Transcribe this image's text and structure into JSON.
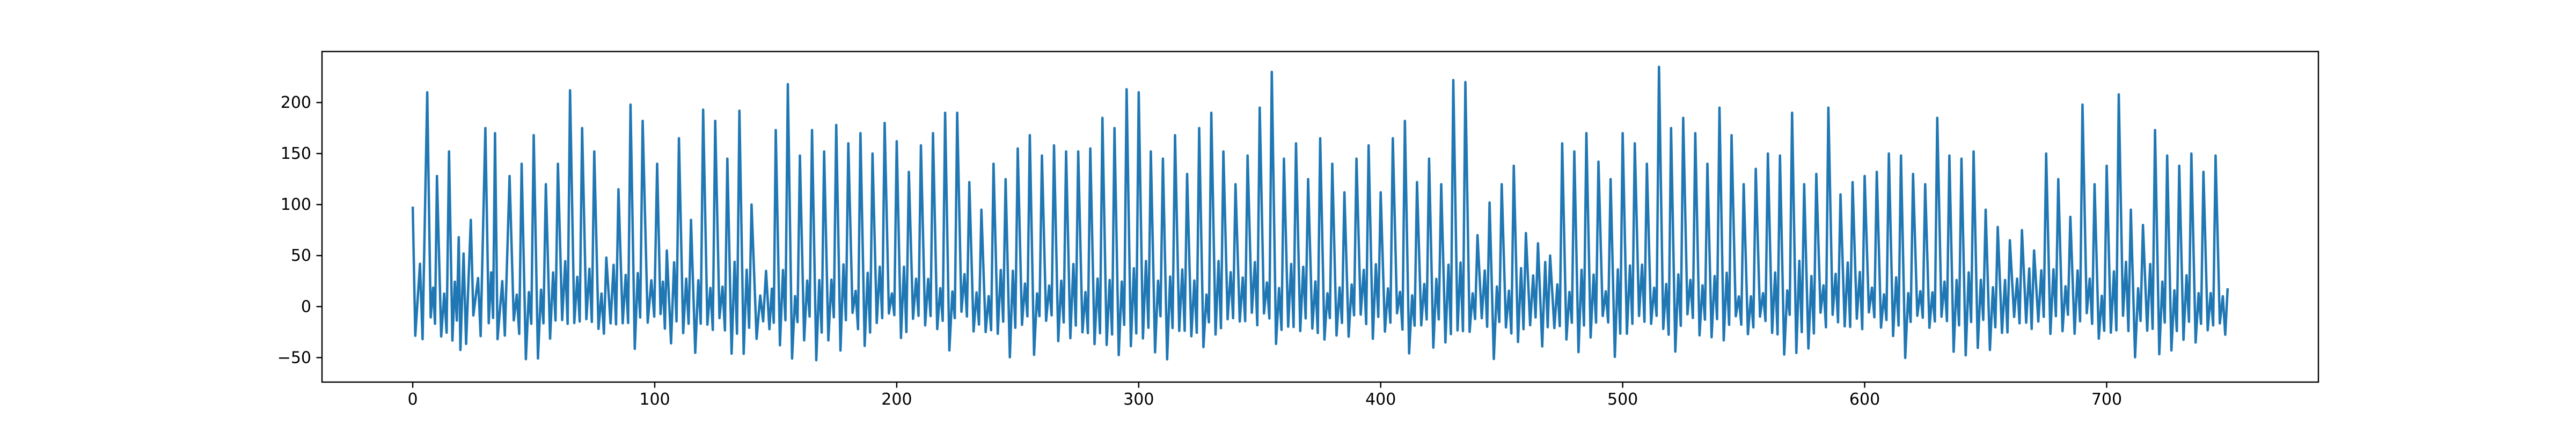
{
  "chart_data": {
    "type": "line",
    "title": "",
    "xlabel": "",
    "ylabel": "",
    "xlim": [
      -37.5,
      787.5
    ],
    "ylim": [
      -74,
      250
    ],
    "grid": false,
    "x_ticks": [
      0,
      100,
      200,
      300,
      400,
      500,
      600,
      700
    ],
    "x_tick_labels": [
      "0",
      "100",
      "200",
      "300",
      "400",
      "500",
      "600",
      "700"
    ],
    "y_ticks": [
      -50,
      0,
      50,
      100,
      150,
      200
    ],
    "y_tick_labels": [
      "−50",
      "0",
      "50",
      "100",
      "150",
      "200"
    ],
    "series": [
      {
        "name": "",
        "color": "#1f77b4",
        "x_start": 0,
        "x_step": 1,
        "description_of_sampling": "",
        "peaks": [
          [
            0,
            98
          ],
          [
            3,
            42
          ],
          [
            6,
            210
          ],
          [
            10,
            128
          ],
          [
            15,
            152
          ],
          [
            19,
            68
          ],
          [
            21,
            52
          ],
          [
            24,
            85
          ],
          [
            27,
            28
          ],
          [
            30,
            175
          ],
          [
            34,
            170
          ],
          [
            37,
            25
          ],
          [
            40,
            128
          ],
          [
            45,
            140
          ],
          [
            50,
            168
          ],
          [
            55,
            120
          ],
          [
            60,
            140
          ],
          [
            65,
            212
          ],
          [
            70,
            175
          ],
          [
            75,
            152
          ],
          [
            80,
            48
          ],
          [
            85,
            115
          ],
          [
            90,
            198
          ],
          [
            95,
            182
          ],
          [
            101,
            140
          ],
          [
            105,
            55
          ],
          [
            110,
            165
          ],
          [
            115,
            85
          ],
          [
            120,
            193
          ],
          [
            125,
            182
          ],
          [
            130,
            145
          ],
          [
            135,
            192
          ],
          [
            140,
            100
          ],
          [
            146,
            35
          ],
          [
            150,
            173
          ],
          [
            155,
            218
          ],
          [
            160,
            148
          ],
          [
            165,
            173
          ],
          [
            170,
            152
          ],
          [
            175,
            178
          ],
          [
            180,
            160
          ],
          [
            185,
            170
          ],
          [
            190,
            150
          ],
          [
            195,
            180
          ],
          [
            200,
            162
          ],
          [
            205,
            132
          ],
          [
            210,
            158
          ],
          [
            215,
            170
          ],
          [
            220,
            190
          ],
          [
            225,
            190
          ],
          [
            230,
            122
          ],
          [
            235,
            95
          ],
          [
            240,
            140
          ],
          [
            245,
            125
          ],
          [
            250,
            155
          ],
          [
            255,
            168
          ],
          [
            260,
            148
          ],
          [
            265,
            158
          ],
          [
            270,
            152
          ],
          [
            275,
            152
          ],
          [
            280,
            155
          ],
          [
            285,
            185
          ],
          [
            290,
            175
          ],
          [
            295,
            213
          ],
          [
            300,
            210
          ],
          [
            305,
            152
          ],
          [
            310,
            145
          ],
          [
            315,
            168
          ],
          [
            320,
            130
          ],
          [
            325,
            175
          ],
          [
            330,
            190
          ],
          [
            335,
            152
          ],
          [
            340,
            120
          ],
          [
            345,
            148
          ],
          [
            350,
            195
          ],
          [
            355,
            230
          ],
          [
            360,
            145
          ],
          [
            365,
            160
          ],
          [
            370,
            125
          ],
          [
            375,
            165
          ],
          [
            380,
            140
          ],
          [
            385,
            112
          ],
          [
            390,
            145
          ],
          [
            395,
            158
          ],
          [
            400,
            112
          ],
          [
            405,
            165
          ],
          [
            410,
            182
          ],
          [
            415,
            122
          ],
          [
            420,
            145
          ],
          [
            425,
            120
          ],
          [
            430,
            222
          ],
          [
            435,
            220
          ],
          [
            440,
            70
          ],
          [
            445,
            102
          ],
          [
            450,
            120
          ],
          [
            455,
            138
          ],
          [
            460,
            72
          ],
          [
            465,
            62
          ],
          [
            470,
            50
          ],
          [
            475,
            160
          ],
          [
            480,
            152
          ],
          [
            485,
            170
          ],
          [
            490,
            142
          ],
          [
            495,
            125
          ],
          [
            500,
            170
          ],
          [
            505,
            160
          ],
          [
            510,
            140
          ],
          [
            515,
            235
          ],
          [
            520,
            175
          ],
          [
            525,
            185
          ],
          [
            530,
            170
          ],
          [
            535,
            140
          ],
          [
            540,
            195
          ],
          [
            545,
            168
          ],
          [
            550,
            120
          ],
          [
            555,
            135
          ],
          [
            560,
            150
          ],
          [
            565,
            148
          ],
          [
            570,
            190
          ],
          [
            575,
            120
          ],
          [
            580,
            130
          ],
          [
            585,
            195
          ],
          [
            590,
            110
          ],
          [
            595,
            122
          ],
          [
            600,
            128
          ],
          [
            605,
            132
          ],
          [
            610,
            150
          ],
          [
            615,
            148
          ],
          [
            620,
            130
          ],
          [
            625,
            120
          ],
          [
            630,
            185
          ],
          [
            635,
            148
          ],
          [
            640,
            145
          ],
          [
            645,
            152
          ],
          [
            650,
            95
          ],
          [
            655,
            78
          ],
          [
            660,
            65
          ],
          [
            665,
            75
          ],
          [
            670,
            55
          ],
          [
            675,
            150
          ],
          [
            680,
            125
          ],
          [
            685,
            88
          ],
          [
            690,
            198
          ],
          [
            695,
            120
          ],
          [
            700,
            138
          ],
          [
            705,
            208
          ],
          [
            710,
            95
          ],
          [
            715,
            80
          ],
          [
            720,
            173
          ],
          [
            725,
            148
          ],
          [
            730,
            138
          ],
          [
            735,
            150
          ],
          [
            740,
            132
          ],
          [
            745,
            148
          ],
          [
            750,
            18
          ]
        ]
      }
    ]
  }
}
